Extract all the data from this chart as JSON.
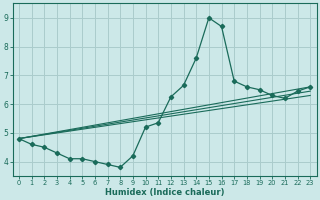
{
  "title": "",
  "xlabel": "Humidex (Indice chaleur)",
  "bg_color": "#cce8e8",
  "grid_color": "#aacccc",
  "line_color": "#1a6b5a",
  "xlim": [
    -0.5,
    23.5
  ],
  "ylim": [
    3.5,
    9.5
  ],
  "xticks": [
    0,
    1,
    2,
    3,
    4,
    5,
    6,
    7,
    8,
    9,
    10,
    11,
    12,
    13,
    14,
    15,
    16,
    17,
    18,
    19,
    20,
    21,
    22,
    23
  ],
  "yticks": [
    4,
    5,
    6,
    7,
    8,
    9
  ],
  "curve1_x": [
    0,
    1,
    2,
    3,
    4,
    5,
    6,
    7,
    8,
    9,
    10,
    11,
    12,
    13,
    14,
    15,
    16,
    17,
    18,
    19,
    20,
    21,
    22,
    23
  ],
  "curve1_y": [
    4.8,
    4.6,
    4.5,
    4.3,
    4.1,
    4.1,
    4.0,
    3.9,
    3.8,
    4.2,
    5.2,
    5.35,
    6.25,
    6.65,
    7.6,
    9.0,
    8.7,
    6.8,
    6.6,
    6.5,
    6.3,
    6.2,
    6.45,
    6.6
  ],
  "line1_x": [
    0,
    23
  ],
  "line1_y": [
    4.8,
    6.45
  ],
  "line2_x": [
    0,
    23
  ],
  "line2_y": [
    4.8,
    6.6
  ],
  "line3_x": [
    0,
    23
  ],
  "line3_y": [
    4.8,
    6.3
  ]
}
